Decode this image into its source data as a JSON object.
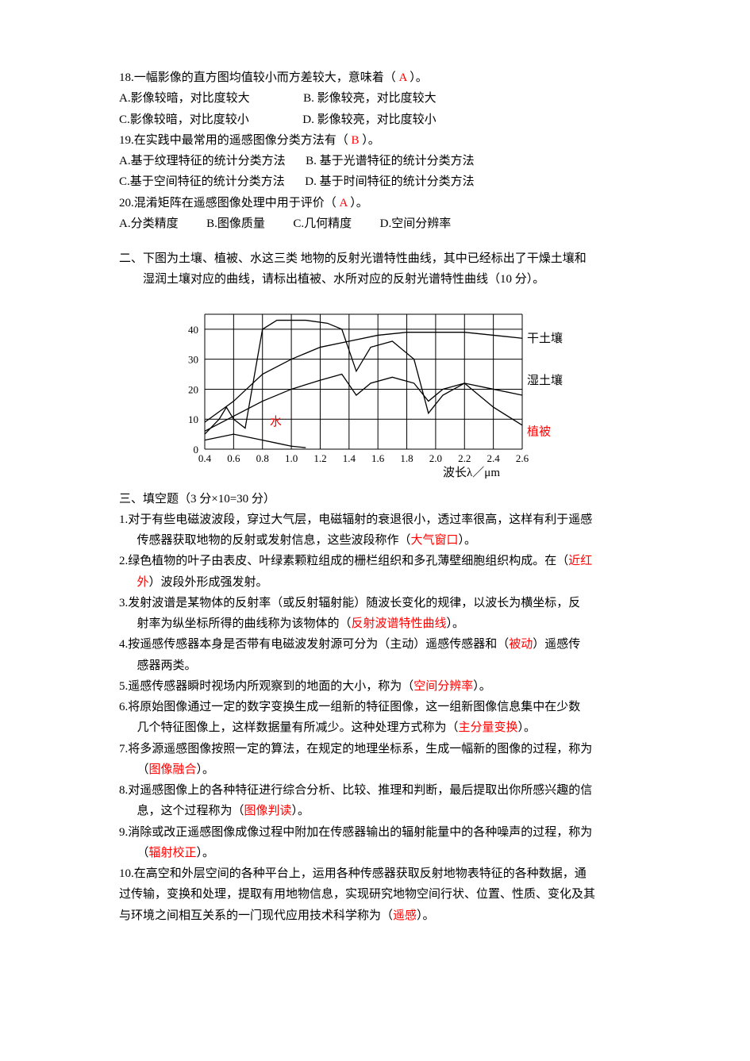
{
  "q18": {
    "stem_pre": "18.一幅影像的直方图均值较小而方差较大，意味着（",
    "ans": "A",
    "stem_post": "）。",
    "optA": "A.影像较暗，对比度较大",
    "optB": "B. 影像较亮，对比度较大",
    "optC": "C.影像较暗，对比度较小",
    "optD": "D. 影像较亮，对比度较小"
  },
  "q19": {
    "stem_pre": "19.在实践中最常用的遥感图像分类方法有（",
    "ans": "B",
    "stem_post": "）。",
    "optA": "A.基于纹理特征的统计分类方法",
    "optB": "B. 基于光谱特征的统计分类方法",
    "optC": "C.基于空间特征的统计分类方法",
    "optD": "D. 基于时间特征的统计分类方法"
  },
  "q20": {
    "stem_pre": "20.混淆矩阵在遥感图像处理中用于评价（",
    "ans": "A",
    "stem_post": "）。",
    "optA": "A.分类精度",
    "optB": "B.图像质量",
    "optC": "C.几何精度",
    "optD": "D.空间分辨率"
  },
  "section2": {
    "l1": "二、下图为土壤、植被、水这三类 地物的反射光谱特性曲线，其中已经标出了干燥土壤和",
    "l2": "湿润土壤对应的曲线，请标出植被、水所对应的反射光谱特性曲线（10 分）。"
  },
  "chart": {
    "x_ticks": [
      "0.4",
      "0.6",
      "0.8",
      "1.0",
      "1.2",
      "1.4",
      "1.6",
      "1.8",
      "2.0",
      "2.2",
      "2.4",
      "2.6"
    ],
    "y_ticks": [
      "0",
      "10",
      "20",
      "30",
      "40"
    ],
    "x_axis_label": "波长λ／μm",
    "label_dry": "干土壤",
    "label_wet": "湿土壤",
    "label_water": "水",
    "label_veg": "植被",
    "grid_color": "#000000",
    "curve_color": "#000000",
    "bg": "#ffffff",
    "x_range": [
      0.4,
      2.6
    ],
    "y_range": [
      0,
      45
    ],
    "series": {
      "dry_soil": [
        [
          0.4,
          9
        ],
        [
          0.6,
          16
        ],
        [
          0.8,
          25
        ],
        [
          1.0,
          30
        ],
        [
          1.2,
          34
        ],
        [
          1.4,
          36
        ],
        [
          1.6,
          38
        ],
        [
          1.8,
          39
        ],
        [
          2.0,
          39
        ],
        [
          2.2,
          39
        ],
        [
          2.4,
          38
        ],
        [
          2.6,
          37
        ]
      ],
      "wet_soil": [
        [
          0.4,
          6
        ],
        [
          0.6,
          11
        ],
        [
          0.8,
          16
        ],
        [
          1.0,
          20
        ],
        [
          1.2,
          23
        ],
        [
          1.35,
          25
        ],
        [
          1.45,
          18
        ],
        [
          1.55,
          22
        ],
        [
          1.7,
          24
        ],
        [
          1.85,
          22
        ],
        [
          1.95,
          16
        ],
        [
          2.05,
          20
        ],
        [
          2.2,
          22
        ],
        [
          2.4,
          20
        ],
        [
          2.6,
          18
        ]
      ],
      "vegetation": [
        [
          0.4,
          5
        ],
        [
          0.5,
          10
        ],
        [
          0.55,
          14
        ],
        [
          0.6,
          10
        ],
        [
          0.68,
          7
        ],
        [
          0.72,
          18
        ],
        [
          0.8,
          40
        ],
        [
          0.9,
          43
        ],
        [
          1.1,
          43
        ],
        [
          1.25,
          42
        ],
        [
          1.35,
          40
        ],
        [
          1.45,
          26
        ],
        [
          1.55,
          34
        ],
        [
          1.7,
          36
        ],
        [
          1.85,
          30
        ],
        [
          1.95,
          12
        ],
        [
          2.05,
          18
        ],
        [
          2.2,
          22
        ],
        [
          2.4,
          14
        ],
        [
          2.6,
          8
        ]
      ],
      "water": [
        [
          0.4,
          3
        ],
        [
          0.5,
          4
        ],
        [
          0.6,
          5
        ],
        [
          0.7,
          4
        ],
        [
          0.8,
          3
        ],
        [
          0.9,
          2
        ],
        [
          1.0,
          1
        ],
        [
          1.1,
          0.5
        ]
      ]
    }
  },
  "section3": {
    "heading": "三、填空题（3 分×10=30 分）"
  },
  "f1": {
    "l1": "1.对于有些电磁波波段，穿过大气层，电磁辐射的衰退很小，透过率很高，这样有利于遥感",
    "l2a": "传感器获取地物的反射或发射信息，这些波段称作（",
    "ans": "大气窗口",
    "l2b": "）。"
  },
  "f2": {
    "l1a": "2.绿色植物的叶子由表皮、叶绿素颗粒组成的栅栏组织和多孔薄壁细胞组织构成。在（",
    "ans": "近红",
    "ans2": "外",
    "l2b": "）波段外形成强发射。"
  },
  "f3": {
    "l1": "3.发射波谱是某物体的反射率（或反射辐射能）随波长变化的规律，以波长为横坐标，反",
    "l2a": "射率为纵坐标所得的曲线称为该物体的（",
    "ans": "反射波谱特性曲线",
    "l2b": "）。"
  },
  "f4": {
    "l1a": "4.按遥感传感器本身是否带有电磁波发射源可分为（主动）遥感传感器和（",
    "ans": "被动",
    "l1b": "）遥感传",
    "l2": "感器两类。"
  },
  "f5": {
    "l1a": "5.遥感传感器瞬时视场内所观察到的地面的大小，称为（",
    "ans": "空间分辨率",
    "l1b": "）。"
  },
  "f6": {
    "l1": "6.将原始图像通过一定的数字变换生成一组新的特征图像，这一组新图像信息集中在少数",
    "l2a": "几个特征图像上，这样数据量有所减少。这种处理方式称为（",
    "ans": "主分量变换",
    "l2b": "）。"
  },
  "f7": {
    "l1": "7.将多源遥感图像按照一定的算法，在规定的地理坐标系，生成一幅新的图像的过程，称为",
    "l2a": "（",
    "ans": "图像融合",
    "l2b": "）。"
  },
  "f8": {
    "l1": "8.对遥感图像上的各种特征进行综合分析、比较、推理和判断，最后提取出你所感兴趣的信",
    "l2a": "息，这个过程称为（",
    "ans": "图像判读",
    "l2b": "）。"
  },
  "f9": {
    "l1": "9.消除或改正遥感图像成像过程中附加在传感器输出的辐射能量中的各种噪声的过程，称为",
    "l2a": "（",
    "ans": "辐射校正",
    "l2b": "）。"
  },
  "f10": {
    "l1": "10.在高空和外层空间的各种平台上，运用各种传感器获取反射地物表特征的各种数据，通",
    "l2": "过传输，变换和处理，提取有用地物信息，实现研究地物空间行状、位置、性质、变化及其",
    "l3a": "与环境之间相互关系的一门现代应用技术科学称为（",
    "ans": "遥感",
    "l3b": "）。"
  }
}
